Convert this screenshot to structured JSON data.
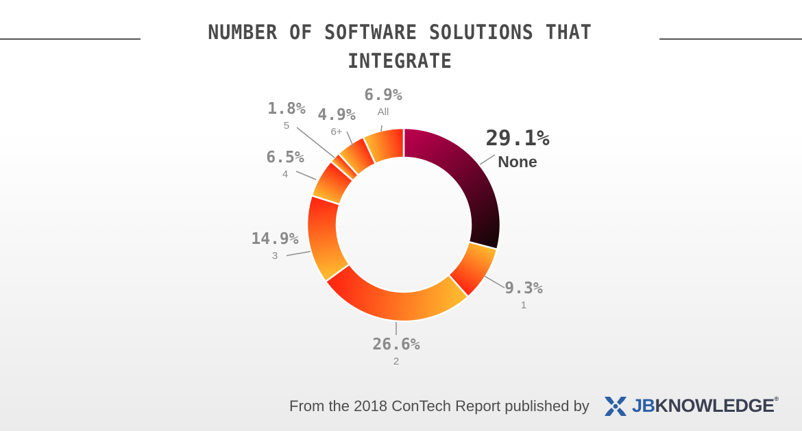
{
  "title": "NUMBER OF SOFTWARE SOLUTIONS THAT INTEGRATE",
  "footer": {
    "text": "From the 2018 ConTech Report published by",
    "logo_jb": "JB",
    "logo_rest": "KNOWLEDGE",
    "logo_reg": "®"
  },
  "chart_data": {
    "type": "pie",
    "title": "NUMBER OF SOFTWARE SOLUTIONS THAT INTEGRATE",
    "categories": [
      "None",
      "1",
      "2",
      "3",
      "4",
      "5",
      "6+",
      "All"
    ],
    "values": [
      29.1,
      9.3,
      26.6,
      14.9,
      6.5,
      1.8,
      4.9,
      6.9
    ],
    "value_labels": [
      "29.1%",
      "9.3%",
      "26.6%",
      "14.9%",
      "6.5%",
      "1.8%",
      "4.9%",
      "6.9%"
    ],
    "donut": true,
    "colors": {
      "highlight_start": "#b5004a",
      "highlight_end": "#1c0509",
      "warm_start": "#ffb62e",
      "warm_end": "#ff2a12",
      "label_gray": "#8a8a8a",
      "highlight_label": "#444444"
    }
  }
}
